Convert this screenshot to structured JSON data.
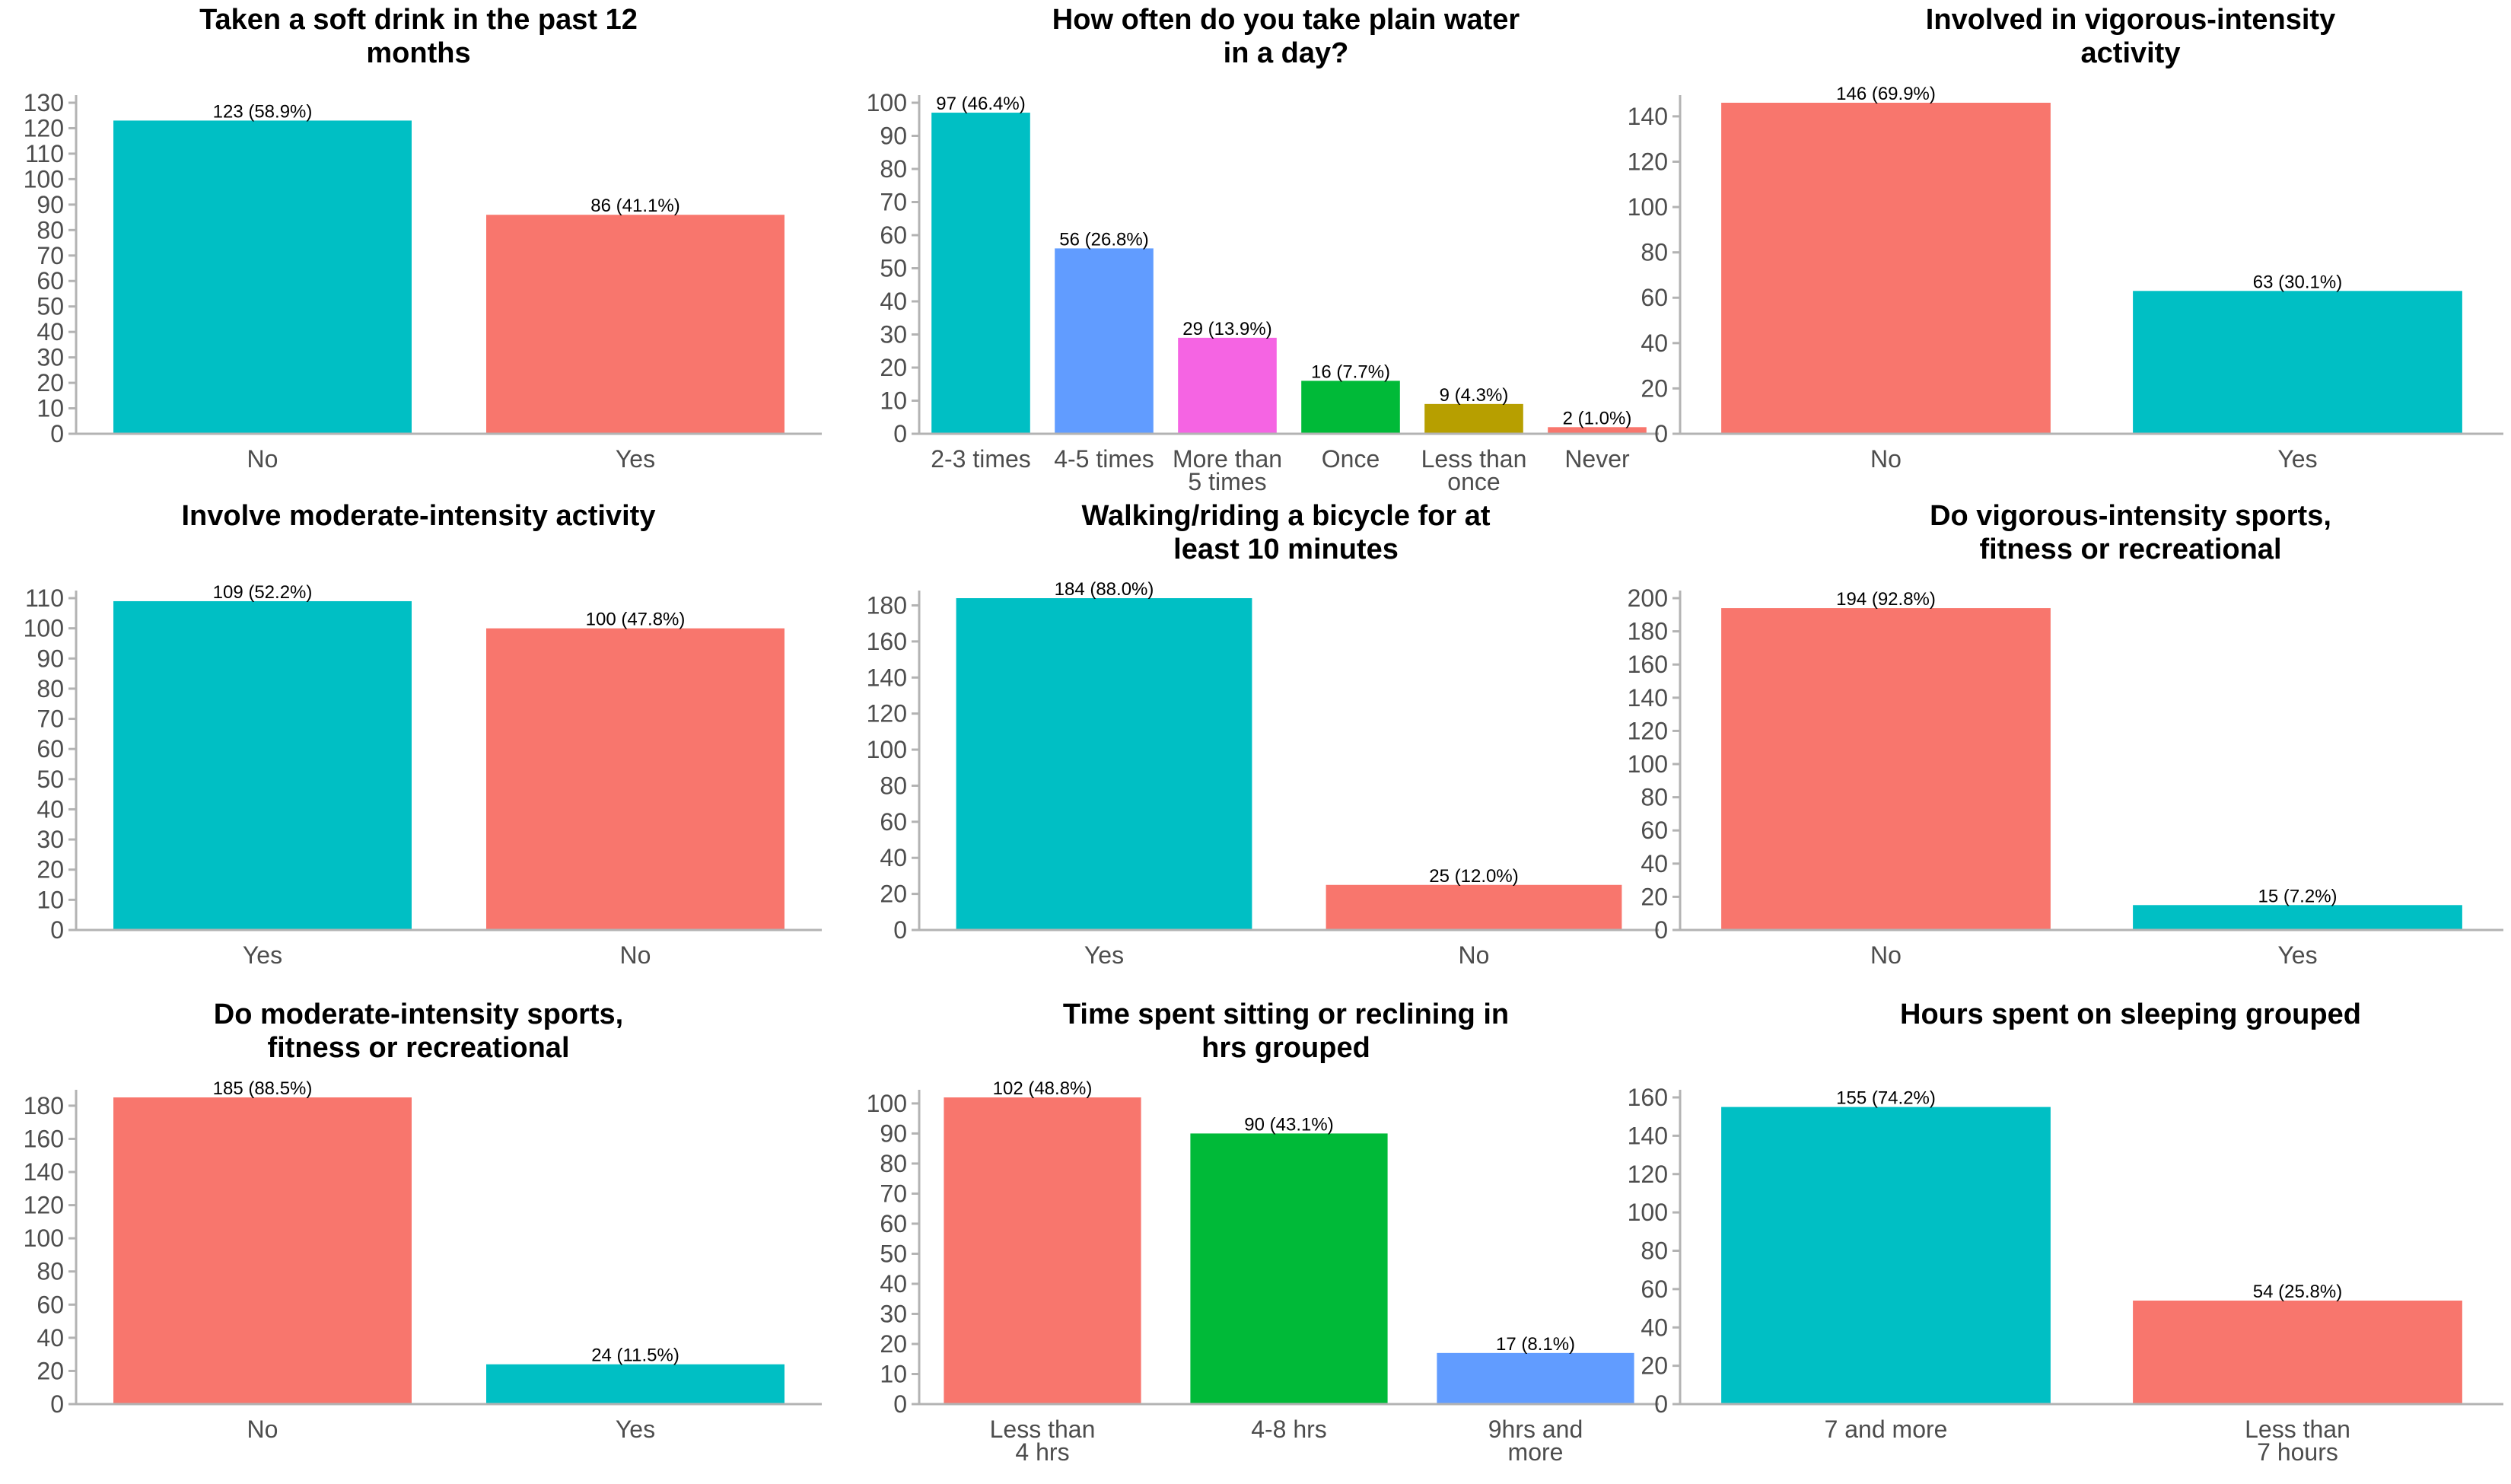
{
  "chart_data": [
    {
      "type": "bar",
      "title": [
        "Taken a soft drink in the past 12",
        "months"
      ],
      "categories": [
        [
          "No"
        ],
        [
          "Yes"
        ]
      ],
      "values": [
        123,
        86
      ],
      "labels": [
        "123 (58.9%)",
        "86 (41.1%)"
      ],
      "colors": [
        "#00BFC4",
        "#F8766D"
      ],
      "ylim": [
        0,
        130
      ],
      "yticks": [
        0,
        10,
        20,
        30,
        40,
        50,
        60,
        70,
        80,
        90,
        100,
        110,
        120,
        130
      ],
      "xlabel": "",
      "ylabel": "",
      "grid": false,
      "legend": "none"
    },
    {
      "type": "bar",
      "title": [
        "How often do you take plain water",
        "in a day?"
      ],
      "categories": [
        [
          "2-3 times"
        ],
        [
          "4-5 times"
        ],
        [
          "More than",
          "5 times"
        ],
        [
          "Once"
        ],
        [
          "Less than",
          "once"
        ],
        [
          "Never"
        ]
      ],
      "values": [
        97,
        56,
        29,
        16,
        9,
        2
      ],
      "labels": [
        "97 (46.4%)",
        "56 (26.8%)",
        "29 (13.9%)",
        "16 (7.7%)",
        "9 (4.3%)",
        "2 (1.0%)"
      ],
      "colors": [
        "#00BFC4",
        "#619CFF",
        "#F564E3",
        "#00BA38",
        "#B79F00",
        "#F8766D"
      ],
      "ylim": [
        0,
        100
      ],
      "yticks": [
        0,
        10,
        20,
        30,
        40,
        50,
        60,
        70,
        80,
        90,
        100
      ],
      "xlabel": "",
      "ylabel": "",
      "grid": false,
      "legend": "none"
    },
    {
      "type": "bar",
      "title": [
        "Involved in vigorous-intensity",
        "activity"
      ],
      "categories": [
        [
          "No"
        ],
        [
          "Yes"
        ]
      ],
      "values": [
        146,
        63
      ],
      "labels": [
        "146 (69.9%)",
        "63 (30.1%)"
      ],
      "colors": [
        "#F8766D",
        "#00BFC4"
      ],
      "ylim": [
        0,
        146
      ],
      "yticks": [
        0,
        20,
        40,
        60,
        80,
        100,
        120,
        140
      ],
      "xlabel": "",
      "ylabel": "",
      "grid": false,
      "legend": "none"
    },
    {
      "type": "bar",
      "title": [
        "Involve moderate-intensity activity"
      ],
      "categories": [
        [
          "Yes"
        ],
        [
          "No"
        ]
      ],
      "values": [
        109,
        100
      ],
      "labels": [
        "109 (52.2%)",
        "100 (47.8%)"
      ],
      "colors": [
        "#00BFC4",
        "#F8766D"
      ],
      "ylim": [
        0,
        110
      ],
      "yticks": [
        0,
        10,
        20,
        30,
        40,
        50,
        60,
        70,
        80,
        90,
        100,
        110
      ],
      "xlabel": "",
      "ylabel": "",
      "grid": false,
      "legend": "none"
    },
    {
      "type": "bar",
      "title": [
        "Walking/riding a bicycle for at",
        "least 10 minutes"
      ],
      "categories": [
        [
          "Yes"
        ],
        [
          "No"
        ]
      ],
      "values": [
        184,
        25
      ],
      "labels": [
        "184 (88.0%)",
        "25 (12.0%)"
      ],
      "colors": [
        "#00BFC4",
        "#F8766D"
      ],
      "ylim": [
        0,
        184
      ],
      "yticks": [
        0,
        20,
        40,
        60,
        80,
        100,
        120,
        140,
        160,
        180
      ],
      "xlabel": "",
      "ylabel": "",
      "grid": false,
      "legend": "none"
    },
    {
      "type": "bar",
      "title": [
        "Do vigorous-intensity sports,",
        "fitness or recreational"
      ],
      "categories": [
        [
          "No"
        ],
        [
          "Yes"
        ]
      ],
      "values": [
        194,
        15
      ],
      "labels": [
        "194 (92.8%)",
        "15 (7.2%)"
      ],
      "colors": [
        "#F8766D",
        "#00BFC4"
      ],
      "ylim": [
        0,
        200
      ],
      "yticks": [
        0,
        20,
        40,
        60,
        80,
        100,
        120,
        140,
        160,
        180,
        200
      ],
      "xlabel": "",
      "ylabel": "",
      "grid": false,
      "legend": "none"
    },
    {
      "type": "bar",
      "title": [
        "Do moderate-intensity sports,",
        "fitness or recreational"
      ],
      "categories": [
        [
          "No"
        ],
        [
          "Yes"
        ]
      ],
      "values": [
        185,
        24
      ],
      "labels": [
        "185 (88.5%)",
        "24 (11.5%)"
      ],
      "colors": [
        "#F8766D",
        "#00BFC4"
      ],
      "ylim": [
        0,
        185
      ],
      "yticks": [
        0,
        20,
        40,
        60,
        80,
        100,
        120,
        140,
        160,
        180
      ],
      "xlabel": "",
      "ylabel": "",
      "grid": false,
      "legend": "none"
    },
    {
      "type": "bar",
      "title": [
        "Time spent sitting or reclining in",
        "hrs grouped"
      ],
      "categories": [
        [
          "Less than",
          "4 hrs"
        ],
        [
          "4-8 hrs"
        ],
        [
          "9hrs and",
          "more"
        ]
      ],
      "values": [
        102,
        90,
        17
      ],
      "labels": [
        "102 (48.8%)",
        "90 (43.1%)",
        "17 (8.1%)"
      ],
      "colors": [
        "#F8766D",
        "#00BA38",
        "#619CFF"
      ],
      "ylim": [
        0,
        102
      ],
      "yticks": [
        0,
        10,
        20,
        30,
        40,
        50,
        60,
        70,
        80,
        90,
        100
      ],
      "xlabel": "",
      "ylabel": "",
      "grid": false,
      "legend": "none"
    },
    {
      "type": "bar",
      "title": [
        "Hours spent on sleeping grouped"
      ],
      "categories": [
        [
          "7 and more"
        ],
        [
          "Less than",
          "7 hours"
        ]
      ],
      "values": [
        155,
        54
      ],
      "labels": [
        "155 (74.2%)",
        "54 (25.8%)"
      ],
      "colors": [
        "#00BFC4",
        "#F8766D"
      ],
      "ylim": [
        0,
        160
      ],
      "yticks": [
        0,
        20,
        40,
        60,
        80,
        100,
        120,
        140,
        160
      ],
      "xlabel": "",
      "ylabel": "",
      "grid": false,
      "legend": "none"
    }
  ]
}
